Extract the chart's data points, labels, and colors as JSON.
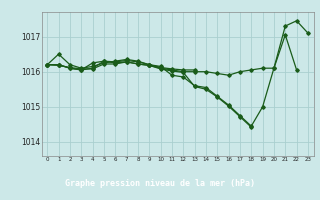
{
  "title": "Graphe pression niveau de la mer (hPa)",
  "background_color": "#cce8e8",
  "plot_bg_color": "#cce8e8",
  "footer_bg_color": "#2e7d32",
  "footer_text_color": "#ffffff",
  "grid_color": "#aacfcf",
  "line_color": "#1a5c1a",
  "xlim": [
    -0.5,
    23.5
  ],
  "ylim": [
    1013.6,
    1017.7
  ],
  "yticks": [
    1014,
    1015,
    1016,
    1017
  ],
  "xtick_labels": [
    "0",
    "1",
    "2",
    "3",
    "4",
    "5",
    "6",
    "7",
    "8",
    "9",
    "10",
    "11",
    "12",
    "13",
    "14",
    "15",
    "16",
    "17",
    "18",
    "19",
    "20",
    "21",
    "22",
    "23"
  ],
  "series": [
    {
      "x": [
        0,
        1,
        2,
        3,
        4,
        5,
        6,
        7,
        8,
        9,
        10,
        11,
        12,
        13,
        14,
        15,
        16,
        17,
        18,
        19,
        20,
        21,
        22,
        23
      ],
      "y": [
        1016.2,
        1016.5,
        1016.2,
        1016.1,
        1016.15,
        1016.25,
        1016.3,
        1016.35,
        1016.3,
        1016.2,
        1016.15,
        1015.9,
        1015.85,
        1015.6,
        1015.55,
        1015.3,
        1015.05,
        1014.75,
        1014.45,
        1015.0,
        1016.1,
        1017.3,
        1017.45,
        1017.1
      ]
    },
    {
      "x": [
        0,
        1,
        2,
        3,
        4,
        5,
        6,
        7,
        8,
        9,
        10,
        11,
        12,
        13,
        14,
        15,
        16,
        17,
        18,
        19,
        20,
        21,
        22
      ],
      "y": [
        1016.2,
        1016.2,
        1016.1,
        1016.05,
        1016.25,
        1016.3,
        1016.25,
        1016.28,
        1016.22,
        1016.18,
        1016.1,
        1016.05,
        1016.0,
        1016.0,
        1016.0,
        1015.95,
        1015.9,
        1016.0,
        1016.05,
        1016.1,
        1016.1,
        1017.05,
        1016.05
      ]
    },
    {
      "x": [
        0,
        1,
        2,
        3,
        4,
        5,
        6,
        7,
        8,
        9,
        10,
        11,
        12,
        13
      ],
      "y": [
        1016.2,
        1016.2,
        1016.1,
        1016.05,
        1016.1,
        1016.3,
        1016.28,
        1016.32,
        1016.28,
        1016.2,
        1016.12,
        1016.08,
        1016.05,
        1016.05
      ]
    },
    {
      "x": [
        0,
        1,
        2,
        3,
        4,
        5,
        6,
        7,
        8,
        9,
        10,
        11,
        12,
        13,
        14,
        15,
        16,
        17,
        18
      ],
      "y": [
        1016.2,
        1016.18,
        1016.12,
        1016.08,
        1016.08,
        1016.22,
        1016.22,
        1016.28,
        1016.22,
        1016.18,
        1016.08,
        1016.02,
        1015.98,
        1015.58,
        1015.5,
        1015.28,
        1015.02,
        1014.72,
        1014.42
      ]
    }
  ]
}
